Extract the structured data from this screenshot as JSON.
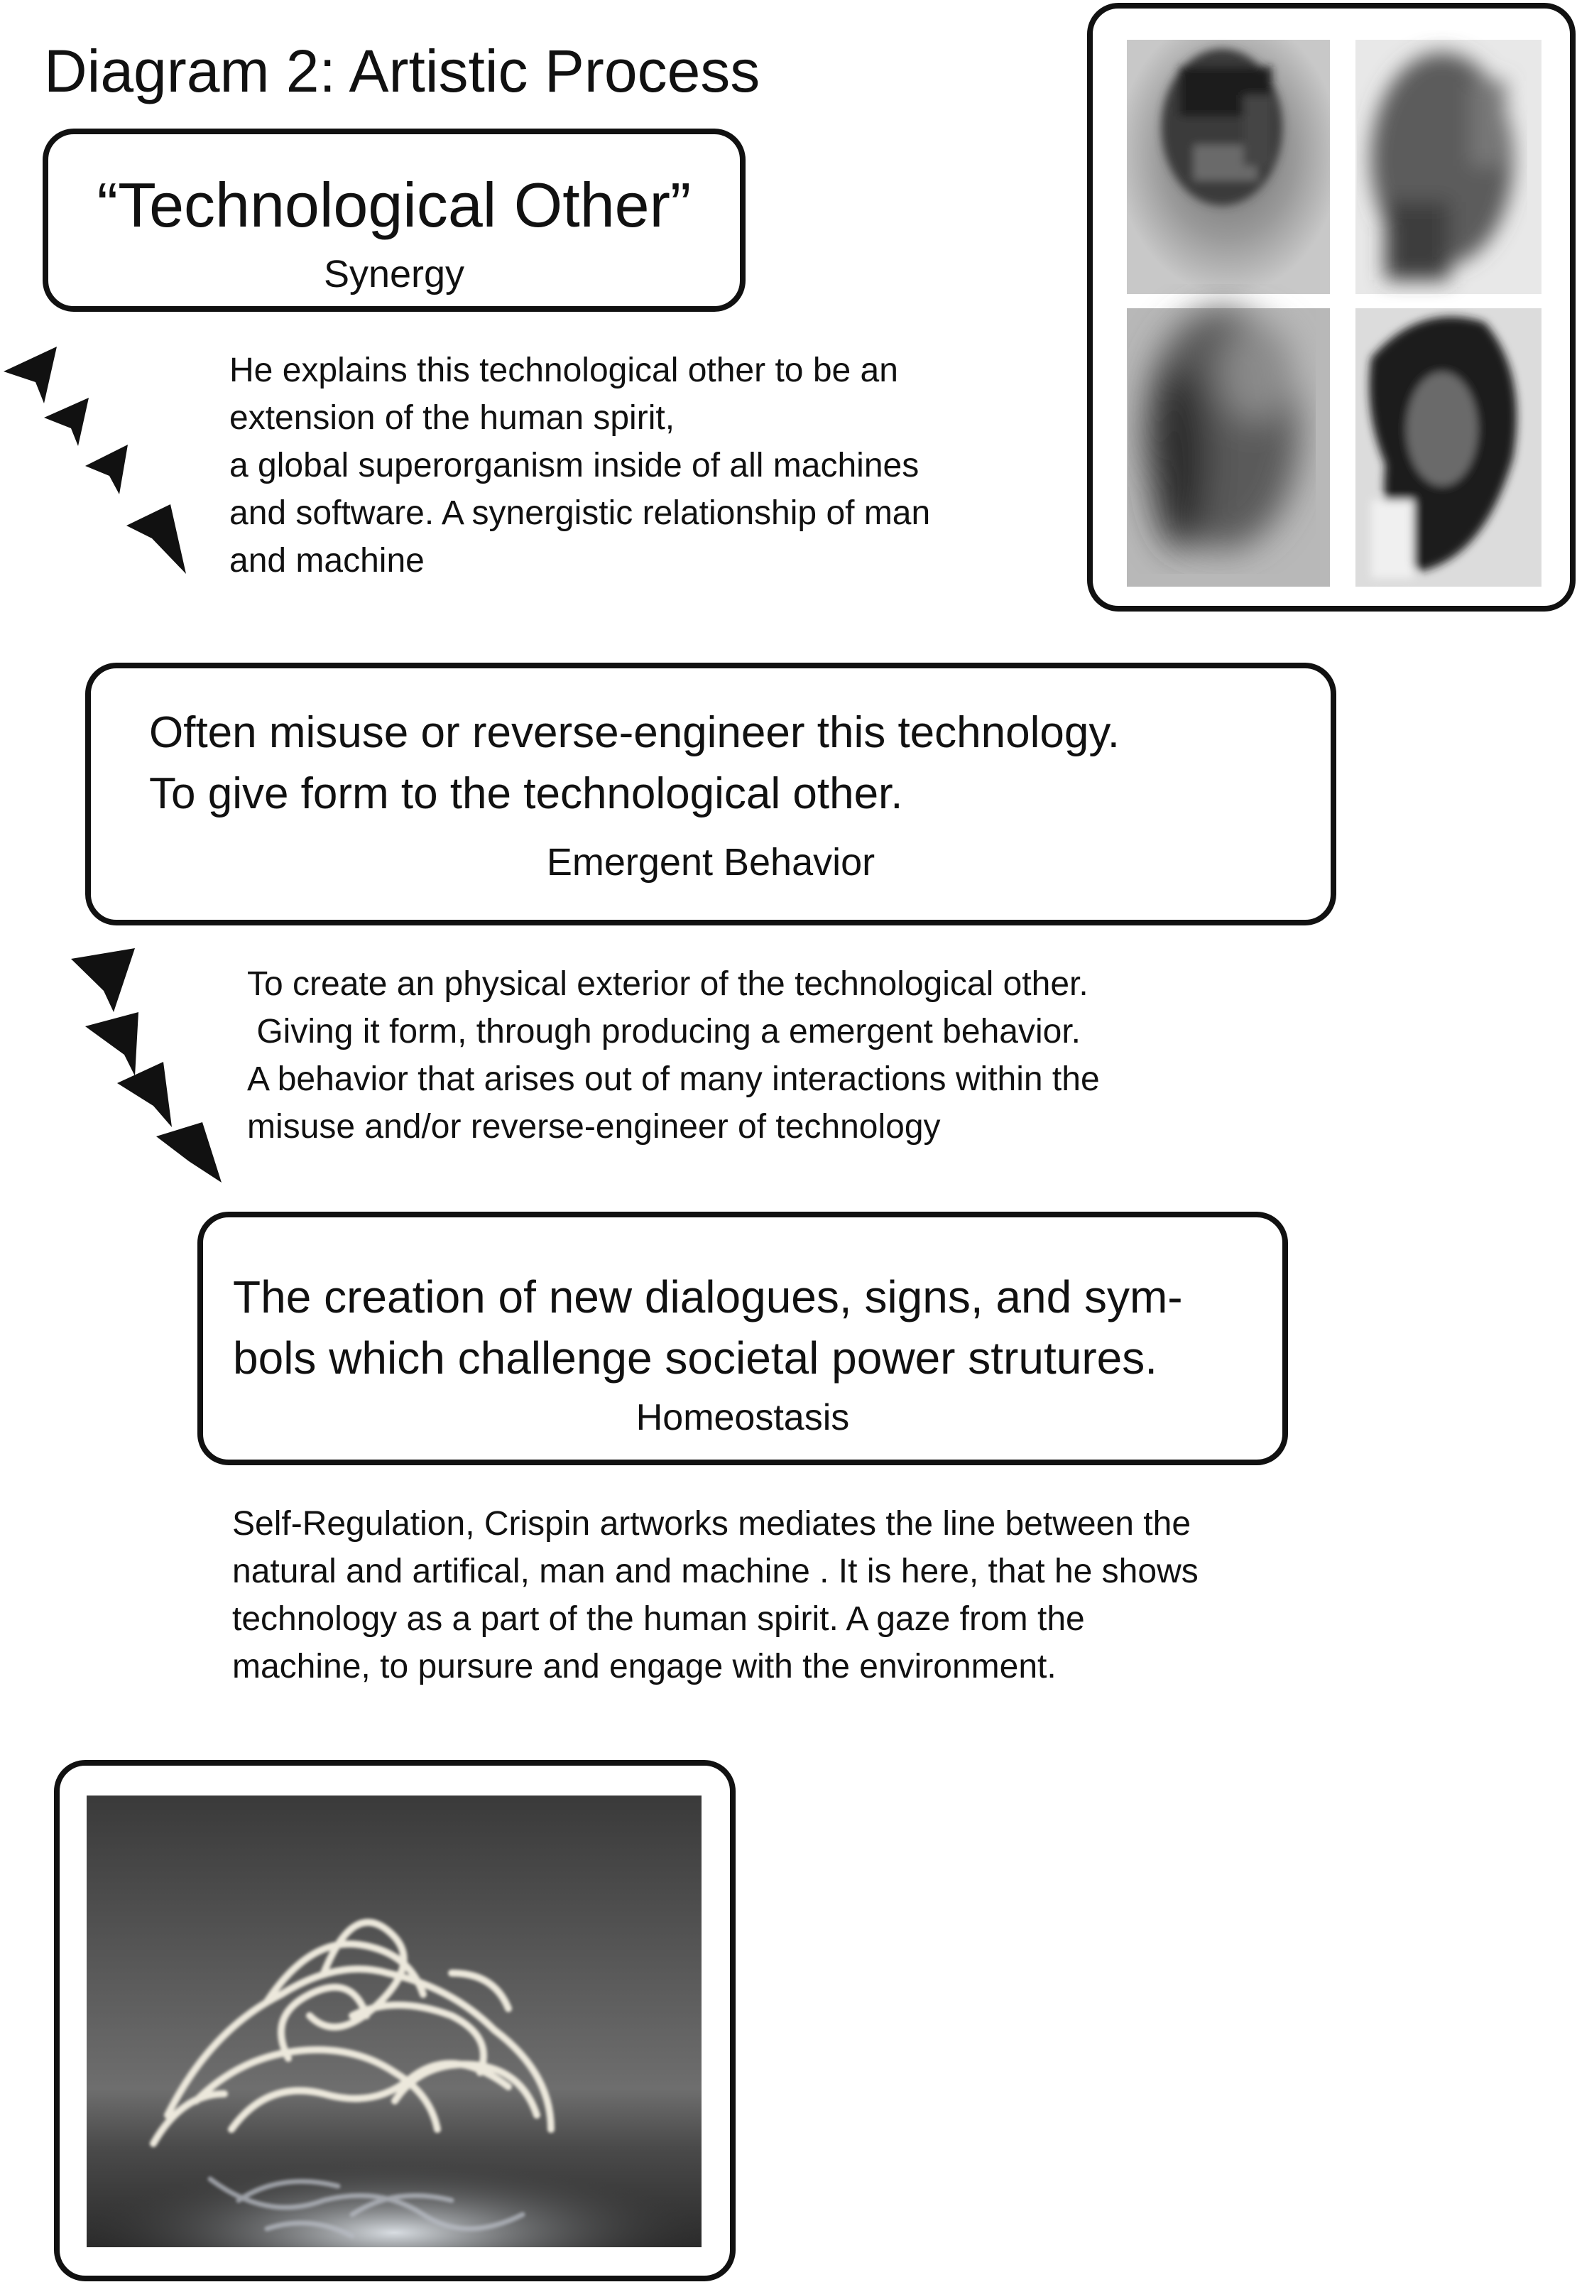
{
  "title": "Diagram 2: Artistic Process",
  "boxes": [
    {
      "heading": "“Technological Other”",
      "subtitle": "Synergy"
    },
    {
      "heading_lines": [
        "Often misuse or reverse-engineer this technology.",
        "To give form to the technological other."
      ],
      "subtitle": "Emergent Behavior"
    },
    {
      "heading_lines": [
        "The creation of new dialogues, signs, and sym-",
        "bols which challenge societal power strutures."
      ],
      "subtitle": "Homeostasis"
    }
  ],
  "paragraphs": [
    [
      "He explains this technological other to be an",
      "extension of the human spirit,",
      "a global superorganism inside of all machines",
      "and software. A synergistic relationship of man",
      "and machine"
    ],
    [
      "To create an physical exterior  of the technological other.",
      " Giving it form, through producing a emergent behavior.",
      "A behavior that arises out of many interactions within the",
      "misuse and/or reverse-engineer of technology"
    ],
    [
      "Self-Regulation, Crispin artworks mediates the line between the",
      "natural and artifical, man and machine . It is here, that he shows",
      "technology as a part of the human spirit. A gaze from the",
      "machine, to pursure and engage with the environment."
    ]
  ],
  "colors": {
    "stroke": "#111111",
    "background": "#ffffff"
  }
}
